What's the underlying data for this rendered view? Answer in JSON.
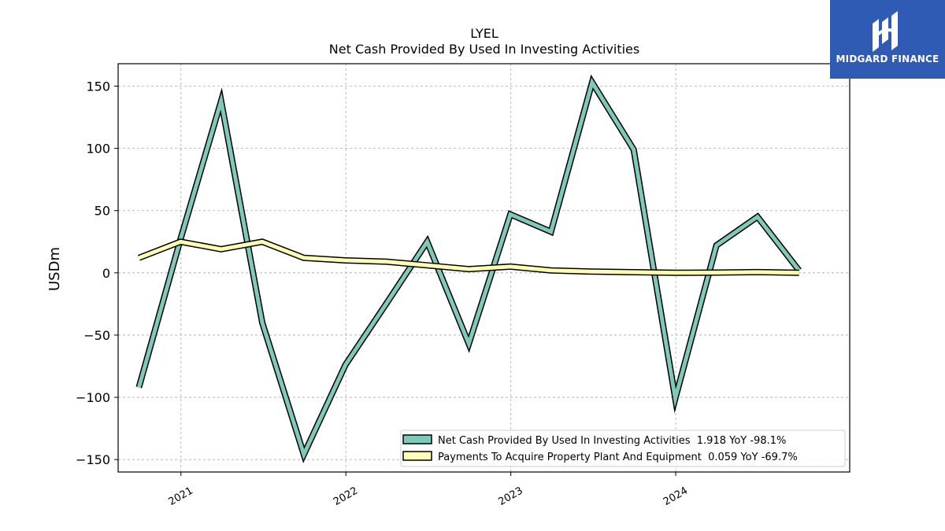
{
  "chart_data": {
    "type": "line",
    "title": "LYEL",
    "subtitle": "Net Cash Provided By Used In Investing Activities",
    "ylabel": "USDm",
    "xlabel": "",
    "ylim": [
      -160,
      168
    ],
    "xlim": [
      "2020-08-15",
      "2025-01-20"
    ],
    "yticks": [
      150,
      100,
      50,
      0,
      -50,
      -100,
      -150
    ],
    "ytick_labels": [
      "150",
      "100",
      "50",
      "0",
      "−50",
      "−100",
      "−150"
    ],
    "xticks": [
      "2021-01-01",
      "2022-01-01",
      "2023-01-01",
      "2024-01-01"
    ],
    "xtick_labels": [
      "2021",
      "2022",
      "2023",
      "2024"
    ],
    "grid": true,
    "legend_position": "lower-right",
    "series": [
      {
        "name": "Net Cash Provided By Used In Investing Activities  1.918 YoY -98.1%",
        "color": "#7fc9ba",
        "x": [
          "2020-09-30",
          "2020-12-31",
          "2021-03-31",
          "2021-06-30",
          "2021-09-30",
          "2021-12-31",
          "2022-03-31",
          "2022-06-30",
          "2022-09-30",
          "2022-12-31",
          "2023-03-31",
          "2023-06-30",
          "2023-09-30",
          "2023-12-31",
          "2024-03-31",
          "2024-06-30",
          "2024-09-30"
        ],
        "values": [
          -92,
          27,
          138,
          -40,
          -146,
          -74,
          -25,
          25,
          -57,
          47,
          33,
          153,
          99,
          -101,
          22,
          45,
          1.918
        ]
      },
      {
        "name": "Payments To Acquire Property Plant And Equipment  0.059 YoY -69.7%",
        "color": "#ffffb3",
        "x": [
          "2020-09-30",
          "2020-12-31",
          "2021-03-31",
          "2021-06-30",
          "2021-09-30",
          "2021-12-31",
          "2022-03-31",
          "2022-06-30",
          "2022-09-30",
          "2022-12-31",
          "2023-03-31",
          "2023-06-30",
          "2023-09-30",
          "2023-12-31",
          "2024-03-31",
          "2024-06-30",
          "2024-09-30"
        ],
        "values": [
          12,
          25,
          19,
          25,
          12,
          10,
          9,
          6,
          3,
          5,
          2,
          1,
          0.5,
          0,
          0.2,
          0.6,
          0.059
        ]
      }
    ]
  },
  "logo": {
    "text": "MIDGARD FINANCE",
    "icon": "midgard-logo-icon"
  }
}
